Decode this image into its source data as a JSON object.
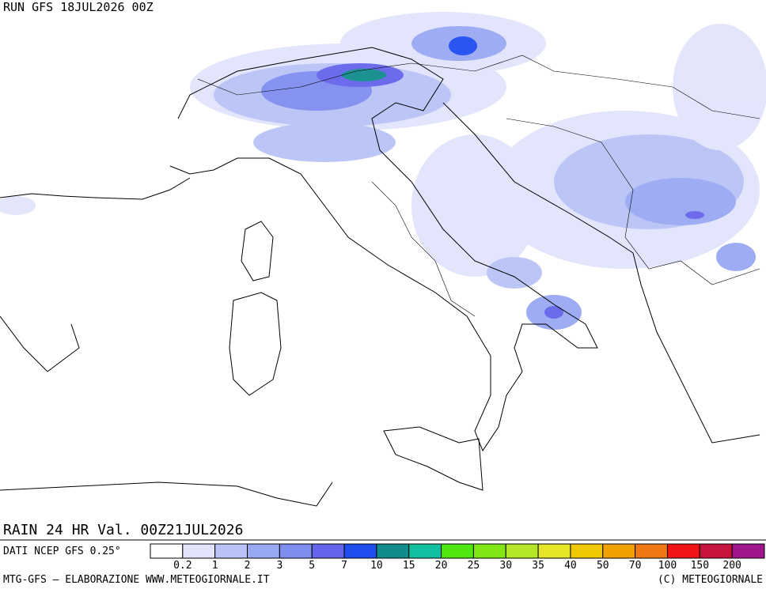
{
  "header": {
    "run": "RUN GFS 18JUL2026 00Z"
  },
  "map": {
    "valid": "RAIN 24 HR Val. 00Z21JUL2026"
  },
  "legend": {
    "source": "DATI NCEP GFS 0.25°",
    "colors": [
      "#ffffff",
      "#e1e4fb",
      "#b9c3f6",
      "#99a8f3",
      "#7f8def",
      "#6464ec",
      "#1e4ef0",
      "#108c8c",
      "#10c0a0",
      "#50e610",
      "#82e614",
      "#b4e628",
      "#e6e628",
      "#f0c800",
      "#f0a000",
      "#f07814",
      "#f01414",
      "#c8143c",
      "#a0148c"
    ],
    "thresholds": [
      0.2,
      1,
      2,
      3,
      5,
      7,
      10,
      15,
      20,
      25,
      30,
      35,
      40,
      50,
      70,
      100,
      150,
      200
    ]
  },
  "footer": {
    "credit": "MTG-GFS — ELABORAZIONE WWW.METEOGIORNALE.IT",
    "copyright": "(C) METEOGIORNALE"
  }
}
